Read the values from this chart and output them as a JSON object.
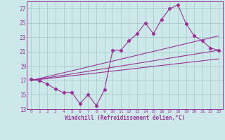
{
  "background_color": "#cce8e8",
  "grid_color": "#aacccc",
  "line_color": "#993399",
  "xlabel": "Windchill (Refroidissement éolien,°C)",
  "xlim": [
    -0.5,
    23.5
  ],
  "ylim": [
    13,
    28
  ],
  "yticks": [
    13,
    15,
    17,
    19,
    21,
    23,
    25,
    27
  ],
  "xticks": [
    0,
    1,
    2,
    3,
    4,
    5,
    6,
    7,
    8,
    9,
    10,
    11,
    12,
    13,
    14,
    15,
    16,
    17,
    18,
    19,
    20,
    21,
    22,
    23
  ],
  "line1_x": [
    0,
    1,
    2,
    3,
    4,
    5,
    6,
    7,
    8,
    9,
    10,
    11,
    12,
    13,
    14,
    15,
    16,
    17,
    18,
    19,
    20,
    21,
    22,
    23
  ],
  "line1_y": [
    17.2,
    17.0,
    16.5,
    15.8,
    15.3,
    15.3,
    13.8,
    15.0,
    13.5,
    15.7,
    21.2,
    21.2,
    22.5,
    23.5,
    25.0,
    23.5,
    25.5,
    27.0,
    27.5,
    24.9,
    23.2,
    22.5,
    21.5,
    21.2
  ],
  "line2_x": [
    0,
    23
  ],
  "line2_y": [
    17.0,
    21.2
  ],
  "line3_x": [
    0,
    23
  ],
  "line3_y": [
    17.0,
    23.2
  ],
  "line4_x": [
    0,
    23
  ],
  "line4_y": [
    17.0,
    20.0
  ]
}
